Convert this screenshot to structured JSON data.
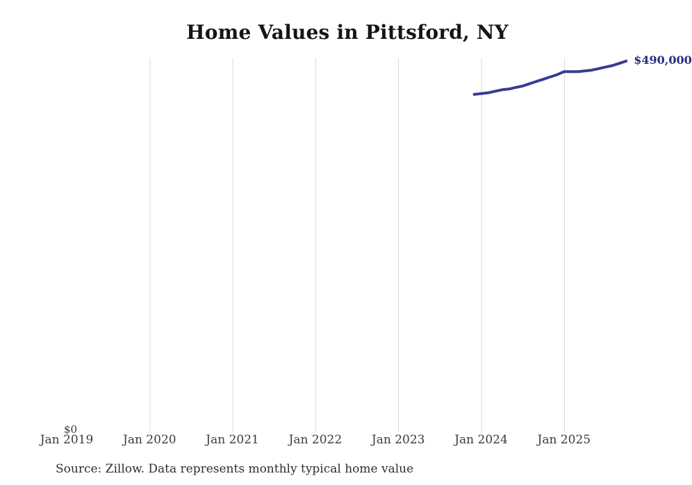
{
  "page": {
    "source_note": "Source: Zillow. Data represents monthly typical home value"
  },
  "chart_data": {
    "type": "line",
    "title": "Home Values in Pittsford, NY",
    "xlabel": "",
    "ylabel": "",
    "grid": "vertical-only",
    "legend_position": "none",
    "colors": {
      "line": "#3b3a94",
      "end_label": "#2a2a80",
      "gridline": "#d9d9d9",
      "title": "#151515",
      "tick_text": "#3b3b3b"
    },
    "y_axis": {
      "min": 0,
      "max": 490000,
      "min_label": "$0"
    },
    "end_label": "$490,000",
    "x_ticks": [
      {
        "label": "Jan 2019",
        "month_index": 0,
        "gridline": false
      },
      {
        "label": "Jan 2020",
        "month_index": 12,
        "gridline": true
      },
      {
        "label": "Jan 2021",
        "month_index": 24,
        "gridline": true
      },
      {
        "label": "Jan 2022",
        "month_index": 36,
        "gridline": true
      },
      {
        "label": "Jan 2023",
        "month_index": 48,
        "gridline": true
      },
      {
        "label": "Jan 2024",
        "month_index": 60,
        "gridline": true
      },
      {
        "label": "Jan 2025",
        "month_index": 72,
        "gridline": true
      }
    ],
    "series": [
      {
        "name": "Typical home value",
        "points": [
          {
            "month": "Dec 2023",
            "month_index": 59,
            "value": 446000
          },
          {
            "month": "Jan 2024",
            "month_index": 60,
            "value": 447000
          },
          {
            "month": "Feb 2024",
            "month_index": 61,
            "value": 448000
          },
          {
            "month": "Mar 2024",
            "month_index": 62,
            "value": 450000
          },
          {
            "month": "Apr 2024",
            "month_index": 63,
            "value": 452000
          },
          {
            "month": "May 2024",
            "month_index": 64,
            "value": 453000
          },
          {
            "month": "Jun 2024",
            "month_index": 65,
            "value": 455000
          },
          {
            "month": "Jul 2024",
            "month_index": 66,
            "value": 457000
          },
          {
            "month": "Aug 2024",
            "month_index": 67,
            "value": 460000
          },
          {
            "month": "Sep 2024",
            "month_index": 68,
            "value": 463000
          },
          {
            "month": "Oct 2024",
            "month_index": 69,
            "value": 466000
          },
          {
            "month": "Nov 2024",
            "month_index": 70,
            "value": 469000
          },
          {
            "month": "Dec 2024",
            "month_index": 71,
            "value": 472000
          },
          {
            "month": "Jan 2025",
            "month_index": 72,
            "value": 476000
          },
          {
            "month": "Feb 2025",
            "month_index": 73,
            "value": 476000
          },
          {
            "month": "Mar 2025",
            "month_index": 74,
            "value": 476000
          },
          {
            "month": "Apr 2025",
            "month_index": 75,
            "value": 477000
          },
          {
            "month": "May 2025",
            "month_index": 76,
            "value": 478000
          },
          {
            "month": "Jun 2025",
            "month_index": 77,
            "value": 480000
          },
          {
            "month": "Jul 2025",
            "month_index": 78,
            "value": 482000
          },
          {
            "month": "Aug 2025",
            "month_index": 79,
            "value": 484000
          },
          {
            "month": "Sep 2025",
            "month_index": 80,
            "value": 487000
          },
          {
            "month": "Oct 2025",
            "month_index": 81,
            "value": 490000
          }
        ]
      }
    ]
  }
}
